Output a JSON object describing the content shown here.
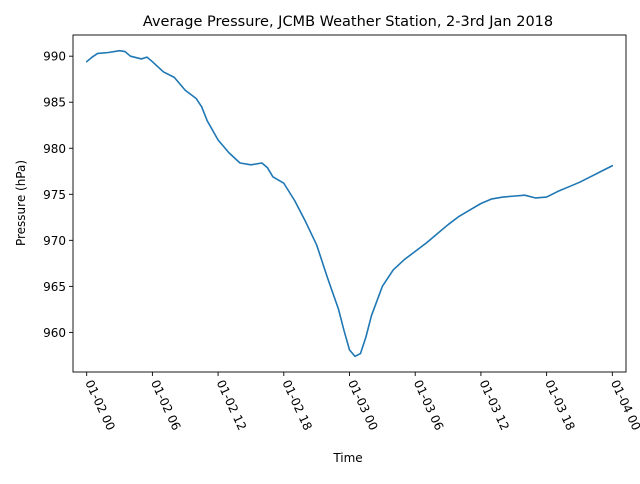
{
  "chart_data": {
    "type": "line",
    "title": "Average Pressure, JCMB Weather Station, 2-3rd Jan 2018",
    "xlabel": "Time",
    "ylabel": "Pressure (hPa)",
    "x_tick_labels": [
      "01-02 00",
      "01-02 06",
      "01-02 12",
      "01-02 18",
      "01-03 00",
      "01-03 06",
      "01-03 12",
      "01-03 18",
      "01-04 00"
    ],
    "y_ticks": [
      960,
      965,
      970,
      975,
      980,
      985,
      990
    ],
    "xlim": [
      "2018-01-01 22:45",
      "2018-01-04 01:15"
    ],
    "ylim": [
      955.7,
      992.3
    ],
    "grid": false,
    "line_color": "#1f77b4",
    "series": [
      {
        "x": [
          "2018-01-02 00:00",
          "2018-01-02 00:30",
          "2018-01-02 01:00",
          "2018-01-02 02:00",
          "2018-01-02 03:00",
          "2018-01-02 03:30",
          "2018-01-02 04:00",
          "2018-01-02 05:00",
          "2018-01-02 05:30",
          "2018-01-02 06:00",
          "2018-01-02 07:00",
          "2018-01-02 08:00",
          "2018-01-02 09:00",
          "2018-01-02 10:00",
          "2018-01-02 10:30",
          "2018-01-02 11:00",
          "2018-01-02 12:00",
          "2018-01-02 13:00",
          "2018-01-02 14:00",
          "2018-01-02 15:00",
          "2018-01-02 16:00",
          "2018-01-02 16:30",
          "2018-01-02 17:00",
          "2018-01-02 18:00",
          "2018-01-02 19:00",
          "2018-01-02 20:00",
          "2018-01-02 21:00",
          "2018-01-02 22:00",
          "2018-01-02 23:00",
          "2018-01-02 23:30",
          "2018-01-03 00:00",
          "2018-01-03 00:30",
          "2018-01-03 01:00",
          "2018-01-03 01:30",
          "2018-01-03 02:00",
          "2018-01-03 03:00",
          "2018-01-03 04:00",
          "2018-01-03 05:00",
          "2018-01-03 06:00",
          "2018-01-03 07:00",
          "2018-01-03 08:00",
          "2018-01-03 09:00",
          "2018-01-03 10:00",
          "2018-01-03 11:00",
          "2018-01-03 12:00",
          "2018-01-03 13:00",
          "2018-01-03 14:00",
          "2018-01-03 15:00",
          "2018-01-03 16:00",
          "2018-01-03 17:00",
          "2018-01-03 18:00",
          "2018-01-03 19:00",
          "2018-01-03 20:00",
          "2018-01-03 21:00",
          "2018-01-03 22:00",
          "2018-01-03 23:00",
          "2018-01-04 00:00"
        ],
        "y": [
          989.4,
          989.9,
          990.3,
          990.4,
          990.6,
          990.5,
          990.0,
          989.7,
          989.9,
          989.4,
          988.3,
          987.7,
          986.3,
          985.4,
          984.5,
          983.0,
          980.9,
          979.5,
          978.4,
          978.2,
          978.4,
          977.9,
          976.9,
          976.2,
          974.3,
          972.0,
          969.5,
          965.9,
          962.5,
          960.2,
          958.1,
          957.4,
          957.7,
          959.5,
          961.8,
          965.0,
          966.8,
          967.9,
          968.8,
          969.7,
          970.7,
          971.7,
          972.6,
          973.3,
          974.0,
          974.5,
          974.7,
          974.8,
          974.9,
          974.6,
          974.7,
          975.3,
          975.8,
          976.3,
          976.9,
          977.5,
          978.1
        ]
      }
    ]
  }
}
